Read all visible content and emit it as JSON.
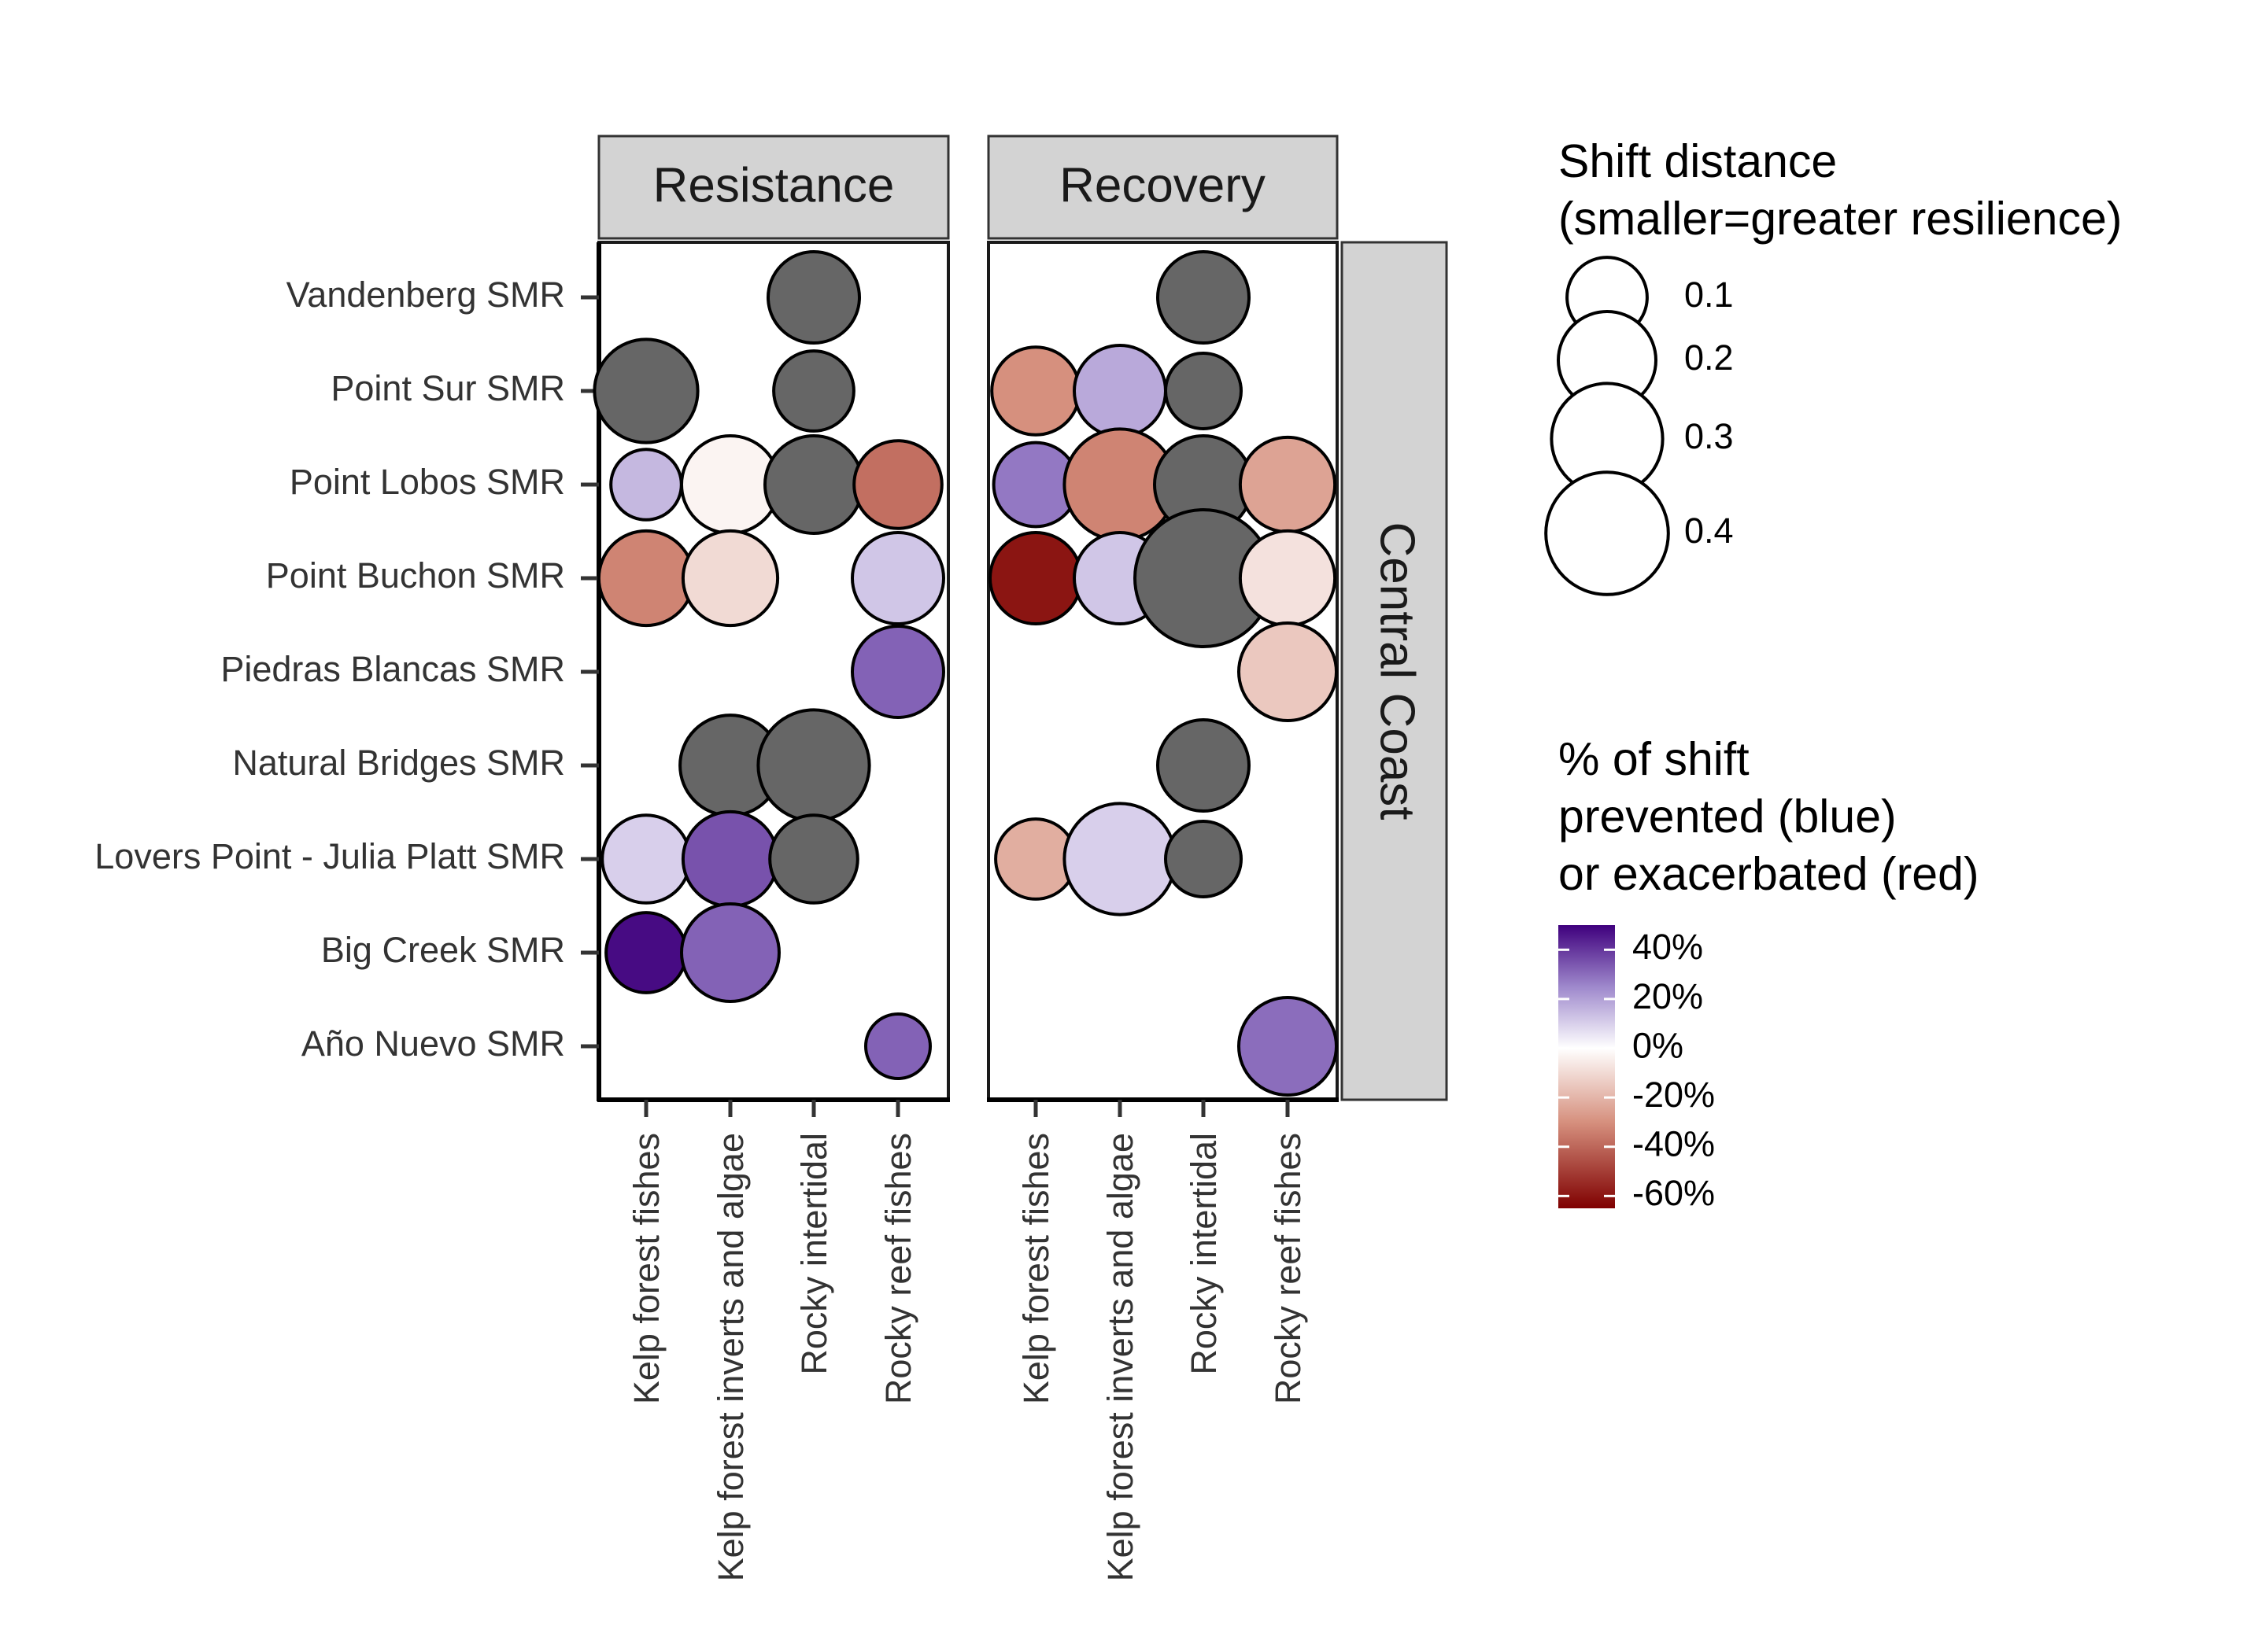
{
  "chart_data": {
    "type": "scatter",
    "facets": [
      "Resistance",
      "Recovery"
    ],
    "row_facet": "Central Coast",
    "categories_y": [
      "Vandenberg SMR",
      "Point Sur SMR",
      "Point Lobos SMR",
      "Point Buchon SMR",
      "Piedras Blancas SMR",
      "Natural Bridges SMR",
      "Lovers Point - Julia Platt SMR",
      "Big Creek SMR",
      "Año Nuevo SMR"
    ],
    "categories_x": [
      "Kelp forest fishes",
      "Kelp forest inverts and algae",
      "Rocky intertidal",
      "Rocky reef fishes"
    ],
    "points": [
      {
        "facet": "Resistance",
        "site": "Vandenberg SMR",
        "group": "Rocky intertidal",
        "shift_distance": 0.16,
        "pct_shift": null
      },
      {
        "facet": "Resistance",
        "site": "Point Sur SMR",
        "group": "Kelp forest fishes",
        "shift_distance": 0.24,
        "pct_shift": null
      },
      {
        "facet": "Resistance",
        "site": "Point Sur SMR",
        "group": "Rocky intertidal",
        "shift_distance": 0.1,
        "pct_shift": null
      },
      {
        "facet": "Resistance",
        "site": "Point Lobos SMR",
        "group": "Kelp forest fishes",
        "shift_distance": 0.06,
        "pct_shift": 15
      },
      {
        "facet": "Resistance",
        "site": "Point Lobos SMR",
        "group": "Kelp forest inverts and algae",
        "shift_distance": 0.2,
        "pct_shift": -3
      },
      {
        "facet": "Resistance",
        "site": "Point Lobos SMR",
        "group": "Rocky intertidal",
        "shift_distance": 0.2,
        "pct_shift": null
      },
      {
        "facet": "Resistance",
        "site": "Point Lobos SMR",
        "group": "Rocky reef fishes",
        "shift_distance": 0.14,
        "pct_shift": -38
      },
      {
        "facet": "Resistance",
        "site": "Point Buchon SMR",
        "group": "Kelp forest fishes",
        "shift_distance": 0.18,
        "pct_shift": -33
      },
      {
        "facet": "Resistance",
        "site": "Point Buchon SMR",
        "group": "Kelp forest inverts and algae",
        "shift_distance": 0.18,
        "pct_shift": -10
      },
      {
        "facet": "Resistance",
        "site": "Point Buchon SMR",
        "group": "Rocky reef fishes",
        "shift_distance": 0.16,
        "pct_shift": 12
      },
      {
        "facet": "Resistance",
        "site": "Piedras Blancas SMR",
        "group": "Rocky reef fishes",
        "shift_distance": 0.16,
        "pct_shift": 32
      },
      {
        "facet": "Resistance",
        "site": "Natural Bridges SMR",
        "group": "Kelp forest inverts and algae",
        "shift_distance": 0.22,
        "pct_shift": null
      },
      {
        "facet": "Resistance",
        "site": "Natural Bridges SMR",
        "group": "Rocky intertidal",
        "shift_distance": 0.3,
        "pct_shift": null
      },
      {
        "facet": "Resistance",
        "site": "Lovers Point - Julia Platt SMR",
        "group": "Kelp forest fishes",
        "shift_distance": 0.14,
        "pct_shift": 10
      },
      {
        "facet": "Resistance",
        "site": "Lovers Point - Julia Platt SMR",
        "group": "Kelp forest inverts and algae",
        "shift_distance": 0.18,
        "pct_shift": 35
      },
      {
        "facet": "Resistance",
        "site": "Lovers Point - Julia Platt SMR",
        "group": "Rocky intertidal",
        "shift_distance": 0.14,
        "pct_shift": null
      },
      {
        "facet": "Resistance",
        "site": "Big Creek SMR",
        "group": "Kelp forest fishes",
        "shift_distance": 0.1,
        "pct_shift": 48
      },
      {
        "facet": "Resistance",
        "site": "Big Creek SMR",
        "group": "Kelp forest inverts and algae",
        "shift_distance": 0.2,
        "pct_shift": 32
      },
      {
        "facet": "Resistance",
        "site": "Año Nuevo SMR",
        "group": "Rocky reef fishes",
        "shift_distance": 0.04,
        "pct_shift": 32
      },
      {
        "facet": "Recovery",
        "site": "Vandenberg SMR",
        "group": "Rocky intertidal",
        "shift_distance": 0.16,
        "pct_shift": null
      },
      {
        "facet": "Recovery",
        "site": "Point Sur SMR",
        "group": "Kelp forest fishes",
        "shift_distance": 0.14,
        "pct_shift": -30
      },
      {
        "facet": "Recovery",
        "site": "Point Sur SMR",
        "group": "Kelp forest inverts and algae",
        "shift_distance": 0.16,
        "pct_shift": 18
      },
      {
        "facet": "Recovery",
        "site": "Point Sur SMR",
        "group": "Rocky intertidal",
        "shift_distance": 0.08,
        "pct_shift": null
      },
      {
        "facet": "Recovery",
        "site": "Point Lobos SMR",
        "group": "Kelp forest fishes",
        "shift_distance": 0.12,
        "pct_shift": 28
      },
      {
        "facet": "Recovery",
        "site": "Point Lobos SMR",
        "group": "Kelp forest inverts and algae",
        "shift_distance": 0.3,
        "pct_shift": -33
      },
      {
        "facet": "Recovery",
        "site": "Point Lobos SMR",
        "group": "Rocky intertidal",
        "shift_distance": 0.2,
        "pct_shift": null
      },
      {
        "facet": "Recovery",
        "site": "Point Lobos SMR",
        "group": "Rocky reef fishes",
        "shift_distance": 0.18,
        "pct_shift": -25
      },
      {
        "facet": "Recovery",
        "site": "Point Buchon SMR",
        "group": "Kelp forest fishes",
        "shift_distance": 0.16,
        "pct_shift": -60
      },
      {
        "facet": "Recovery",
        "site": "Point Buchon SMR",
        "group": "Kelp forest inverts and algae",
        "shift_distance": 0.16,
        "pct_shift": 12
      },
      {
        "facet": "Recovery",
        "site": "Point Buchon SMR",
        "group": "Rocky intertidal",
        "shift_distance": 0.55,
        "pct_shift": null
      },
      {
        "facet": "Recovery",
        "site": "Point Buchon SMR",
        "group": "Rocky reef fishes",
        "shift_distance": 0.18,
        "pct_shift": -8
      },
      {
        "facet": "Recovery",
        "site": "Piedras Blancas SMR",
        "group": "Rocky reef fishes",
        "shift_distance": 0.2,
        "pct_shift": -15
      },
      {
        "facet": "Recovery",
        "site": "Natural Bridges SMR",
        "group": "Rocky intertidal",
        "shift_distance": 0.16,
        "pct_shift": null
      },
      {
        "facet": "Recovery",
        "site": "Lovers Point - Julia Platt SMR",
        "group": "Kelp forest fishes",
        "shift_distance": 0.1,
        "pct_shift": -22
      },
      {
        "facet": "Recovery",
        "site": "Lovers Point - Julia Platt SMR",
        "group": "Kelp forest inverts and algae",
        "shift_distance": 0.3,
        "pct_shift": 10
      },
      {
        "facet": "Recovery",
        "site": "Lovers Point - Julia Platt SMR",
        "group": "Rocky intertidal",
        "shift_distance": 0.08,
        "pct_shift": null
      },
      {
        "facet": "Recovery",
        "site": "Año Nuevo SMR",
        "group": "Rocky reef fishes",
        "shift_distance": 0.2,
        "pct_shift": 30
      }
    ],
    "size_legend": {
      "title_line1": "Shift distance",
      "title_line2": "(smaller=greater resilience)",
      "values": [
        0.1,
        0.2,
        0.3,
        0.4
      ],
      "labels": [
        "0.1",
        "0.2",
        "0.3",
        "0.4"
      ]
    },
    "color_legend": {
      "title_line1": "% of shift",
      "title_line2": "prevented (blue)",
      "title_line3": "or exacerbated (red)",
      "range": [
        -65,
        50
      ],
      "ticks": [
        40,
        20,
        0,
        -20,
        -40,
        -60
      ],
      "labels": [
        "40%",
        "20%",
        "0%",
        "-20%",
        "-40%",
        "-60%"
      ],
      "na_color": "#666666",
      "stops": [
        {
          "value": 50,
          "color": "#3f007d"
        },
        {
          "value": 25,
          "color": "#9e88cc"
        },
        {
          "value": 0,
          "color": "#ffffff"
        },
        {
          "value": -30,
          "color": "#d6907e"
        },
        {
          "value": -65,
          "color": "#7f0000"
        }
      ]
    }
  }
}
